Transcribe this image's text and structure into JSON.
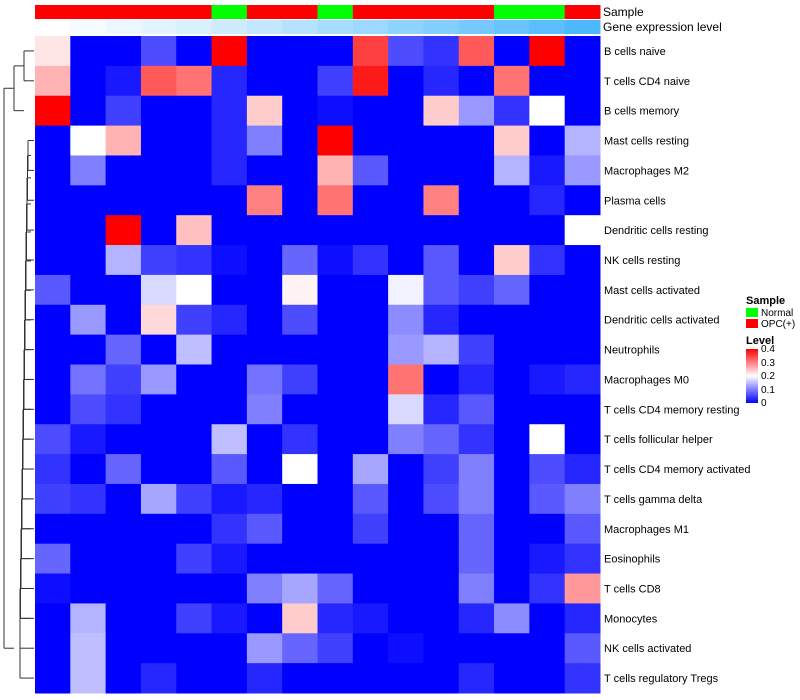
{
  "chart_data": {
    "type": "heatmap",
    "title": "",
    "annotation_labels": [
      "Sample",
      "Gene expression level"
    ],
    "sample_groups": [
      "OPC(+)",
      "OPC(+)",
      "OPC(+)",
      "OPC(+)",
      "OPC(+)",
      "Normal",
      "OPC(+)",
      "OPC(+)",
      "Normal",
      "OPC(+)",
      "OPC(+)",
      "OPC(+)",
      "OPC(+)",
      "Normal",
      "Normal",
      "OPC(+)"
    ],
    "expression_levels": [
      0.02,
      0.05,
      0.08,
      0.11,
      0.14,
      0.17,
      0.21,
      0.25,
      0.29,
      0.33,
      0.37,
      0.41,
      0.45,
      0.49,
      0.53,
      0.58
    ],
    "rows": [
      "B cells naive",
      "T cells CD4 naive",
      "B cells memory",
      "Mast cells resting",
      "Macrophages M2",
      "Plasma cells",
      "Dendritic cells resting",
      "NK cells resting",
      "Mast cells activated",
      "Dendritic cells activated",
      "Neutrophils",
      "Macrophages M0",
      "T cells CD4 memory resting",
      "T cells follicular helper",
      "T cells CD4 memory activated",
      "T cells gamma delta",
      "Macrophages M1",
      "Eosinophils",
      "T cells CD8",
      "Monocytes",
      "NK cells activated",
      "T cells regulatory  Tregs"
    ],
    "values": [
      [
        0.22,
        0,
        0,
        0.06,
        0,
        0.4,
        0,
        0,
        0,
        0.35,
        0.06,
        0.04,
        0.33,
        0,
        0.4,
        0
      ],
      [
        0.26,
        0,
        0.02,
        0.33,
        0.31,
        0.03,
        0,
        0,
        0.05,
        0.38,
        0,
        0.03,
        0,
        0.31,
        0,
        0
      ],
      [
        0.4,
        0,
        0.05,
        0,
        0,
        0.03,
        0.24,
        0,
        0.01,
        0,
        0,
        0.24,
        0.12,
        0.04,
        0.2,
        0
      ],
      [
        0,
        0.2,
        0.26,
        0,
        0,
        0.03,
        0.1,
        0,
        0.4,
        0,
        0,
        0,
        0,
        0.24,
        0,
        0.14
      ],
      [
        0,
        0.1,
        0,
        0,
        0,
        0.03,
        0,
        0,
        0.26,
        0.07,
        0,
        0,
        0,
        0.14,
        0.02,
        0.12
      ],
      [
        0,
        0,
        0,
        0,
        0,
        0,
        0.3,
        0,
        0.31,
        0,
        0,
        0.3,
        0,
        0,
        0.03,
        0
      ],
      [
        0,
        0,
        0.4,
        0,
        0.25,
        0,
        0,
        0,
        0,
        0,
        0,
        0,
        0,
        0,
        0,
        0.2
      ],
      [
        0,
        0,
        0.14,
        0.05,
        0.04,
        0.01,
        0,
        0.08,
        0.01,
        0.04,
        0,
        0.07,
        0,
        0.24,
        0.04,
        0
      ],
      [
        0.07,
        0,
        0,
        0.17,
        0.2,
        0,
        0,
        0.21,
        0,
        0,
        0.19,
        0.07,
        0.05,
        0.08,
        0,
        0
      ],
      [
        0,
        0.12,
        0,
        0.23,
        0.05,
        0.03,
        0,
        0.06,
        0,
        0,
        0.11,
        0.03,
        0,
        0,
        0,
        0
      ],
      [
        0,
        0,
        0.08,
        0,
        0.15,
        0,
        0,
        0,
        0,
        0,
        0.12,
        0.14,
        0.05,
        0,
        0,
        0
      ],
      [
        0,
        0.09,
        0.05,
        0.12,
        0,
        0,
        0.09,
        0.05,
        0,
        0,
        0.31,
        0,
        0.03,
        0,
        0.02,
        0.03
      ],
      [
        0,
        0.06,
        0.04,
        0,
        0,
        0,
        0.1,
        0,
        0,
        0,
        0.17,
        0.03,
        0.07,
        0,
        0,
        0
      ],
      [
        0.06,
        0.02,
        0,
        0,
        0,
        0.15,
        0,
        0.04,
        0,
        0,
        0.1,
        0.08,
        0.04,
        0,
        0.2,
        0
      ],
      [
        0.04,
        0,
        0.08,
        0,
        0,
        0.07,
        0,
        0.2,
        0,
        0.13,
        0,
        0.05,
        0.1,
        0,
        0.06,
        0.03
      ],
      [
        0.05,
        0.04,
        0,
        0.13,
        0.05,
        0.02,
        0.03,
        0,
        0,
        0.07,
        0,
        0.06,
        0.1,
        0,
        0.07,
        0.1
      ],
      [
        0,
        0,
        0,
        0,
        0,
        0.04,
        0.07,
        0,
        0,
        0.05,
        0,
        0,
        0.08,
        0,
        0,
        0.07
      ],
      [
        0.08,
        0,
        0,
        0,
        0.05,
        0.02,
        0,
        0,
        0,
        0,
        0,
        0,
        0.08,
        0,
        0.02,
        0.04
      ],
      [
        0.01,
        0,
        0,
        0,
        0,
        0,
        0.1,
        0.13,
        0.08,
        0,
        0,
        0,
        0.1,
        0,
        0.04,
        0.28
      ],
      [
        0,
        0.14,
        0,
        0,
        0.05,
        0.02,
        0,
        0.24,
        0.03,
        0.02,
        0,
        0,
        0.03,
        0.11,
        0,
        0.03
      ],
      [
        0,
        0.15,
        0,
        0,
        0,
        0,
        0.12,
        0.08,
        0.05,
        0,
        0.01,
        0,
        0,
        0,
        0,
        0.07
      ],
      [
        0,
        0.15,
        0,
        0.03,
        0,
        0,
        0.03,
        0,
        0,
        0,
        0,
        0,
        0.03,
        0,
        0,
        0.04
      ]
    ],
    "color_scale": {
      "min": 0,
      "max": 0.4,
      "low": "#0000ff",
      "mid": "#ffffff",
      "high": "#ff0000",
      "mid_value": 0.2
    },
    "group_colors": {
      "Normal": "#00ff00",
      "OPC(+)": "#ff0000"
    },
    "annotation_gradient": {
      "low": "#ffffff",
      "high": "#4cb8ff"
    },
    "legend": {
      "sample_title": "Sample",
      "sample_entries": [
        "Normal",
        "OPC(+)"
      ],
      "level_title": "Level",
      "level_ticks": [
        "0.4",
        "0.3",
        "0.2",
        "0.1",
        "0"
      ],
      "position": "right"
    }
  }
}
